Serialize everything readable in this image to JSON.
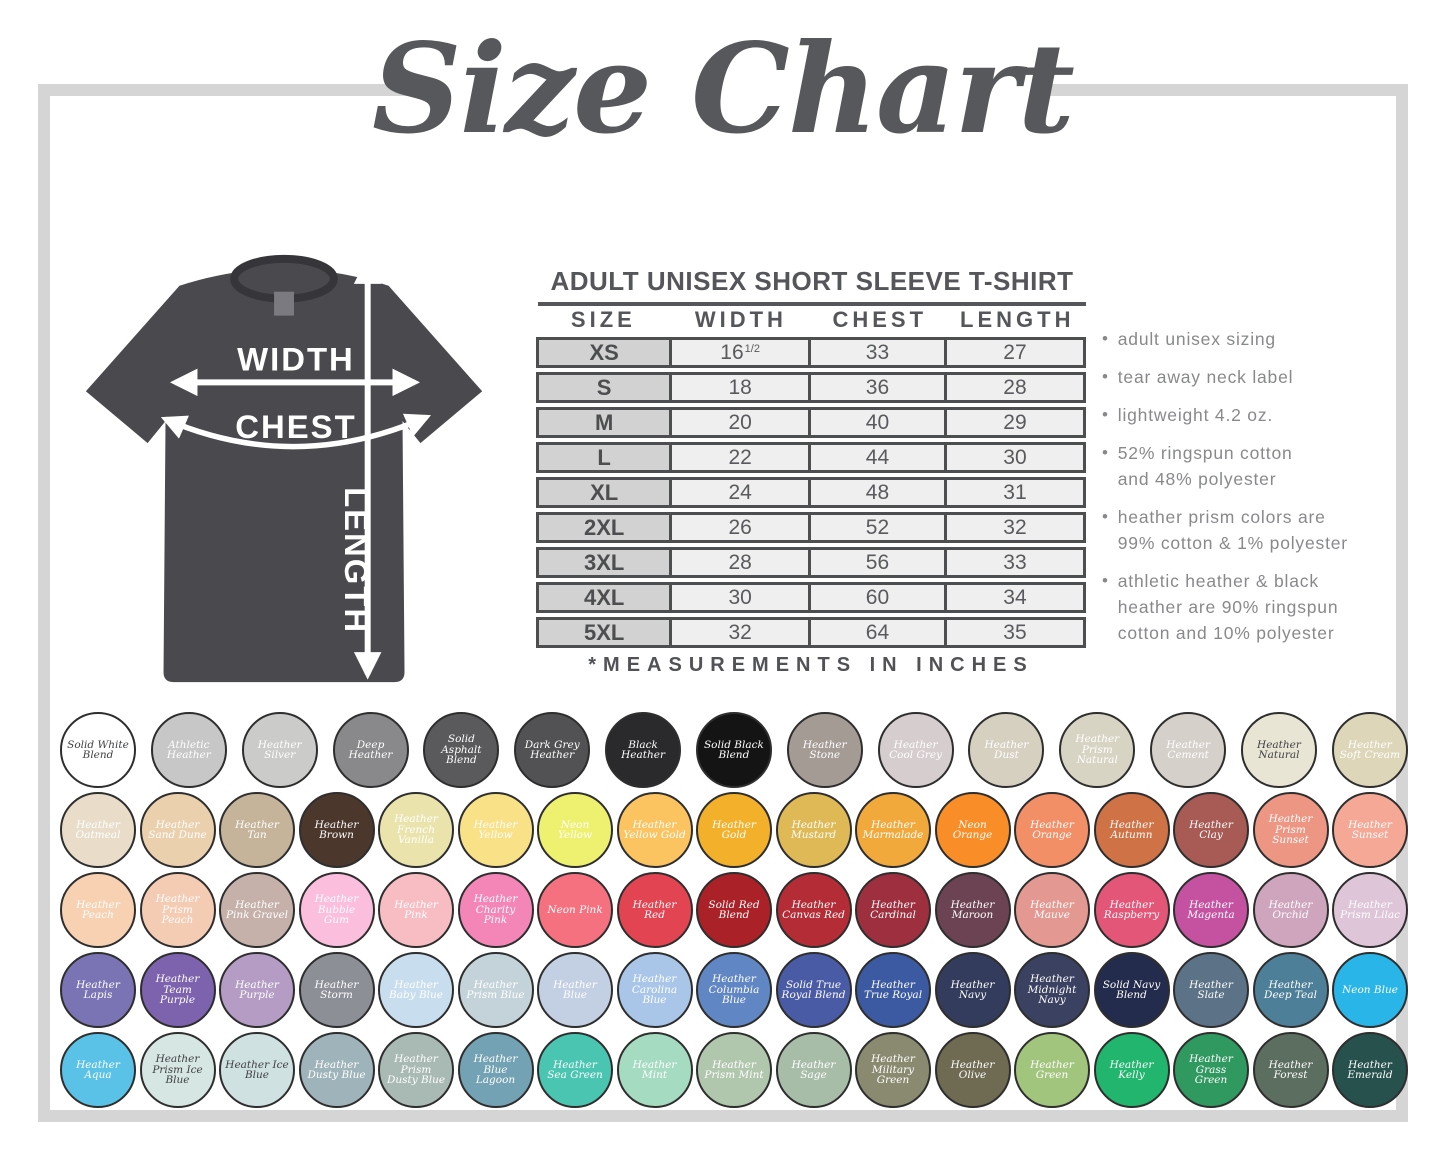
{
  "page": {
    "title": "Size Chart"
  },
  "diagram": {
    "width_label": "WIDTH",
    "chest_label": "CHEST",
    "length_label": "LENGTH",
    "shirt_color": "#4a494e"
  },
  "product": {
    "heading": "ADULT UNISEX SHORT SLEEVE T-SHIRT",
    "columns": [
      "SIZE",
      "WIDTH",
      "CHEST",
      "LENGTH"
    ],
    "rows": [
      {
        "size": "XS",
        "width": "16",
        "width_sup": "1/2",
        "chest": "33",
        "length": "27"
      },
      {
        "size": "S",
        "width": "18",
        "chest": "36",
        "length": "28"
      },
      {
        "size": "M",
        "width": "20",
        "chest": "40",
        "length": "29"
      },
      {
        "size": "L",
        "width": "22",
        "chest": "44",
        "length": "30"
      },
      {
        "size": "XL",
        "width": "24",
        "chest": "48",
        "length": "31"
      },
      {
        "size": "2XL",
        "width": "26",
        "chest": "52",
        "length": "32"
      },
      {
        "size": "3XL",
        "width": "28",
        "chest": "56",
        "length": "33"
      },
      {
        "size": "4XL",
        "width": "30",
        "chest": "60",
        "length": "34"
      },
      {
        "size": "5XL",
        "width": "32",
        "chest": "64",
        "length": "35"
      }
    ],
    "note": "*MEASUREMENTS IN INCHES"
  },
  "bullets": [
    [
      "adult unisex sizing"
    ],
    [
      "tear away neck label"
    ],
    [
      "lightweight 4.2 oz."
    ],
    [
      "52% ringspun cotton",
      "and 48% polyester"
    ],
    [
      "heather prism colors are",
      "99% cotton & 1% polyester"
    ],
    [
      "athletic heather & black",
      "heather are 90% ringspun",
      "cotton and 10% polyester"
    ]
  ],
  "swatch_rows": [
    [
      {
        "name": "Solid White Blend",
        "color": "#ffffff",
        "dark": true
      },
      {
        "name": "Athletic Heather",
        "color": "#c7c7c7"
      },
      {
        "name": "Heather Silver",
        "color": "#cbcbc9"
      },
      {
        "name": "Deep Heather",
        "color": "#89898b"
      },
      {
        "name": "Solid Asphalt Blend",
        "color": "#5a5a5c"
      },
      {
        "name": "Dark Grey Heather",
        "color": "#525254"
      },
      {
        "name": "Black Heather",
        "color": "#2a2a2c"
      },
      {
        "name": "Solid Black Blend",
        "color": "#141414"
      },
      {
        "name": "Heather Stone",
        "color": "#a49b95"
      },
      {
        "name": "Heather Cool Grey",
        "color": "#d5cdce"
      },
      {
        "name": "Heather Dust",
        "color": "#d6d0c1"
      },
      {
        "name": "Heather Prism Natural",
        "color": "#d7d4c3"
      },
      {
        "name": "Heather Cement",
        "color": "#d5d0c9"
      },
      {
        "name": "Heather Natural",
        "color": "#e9e5d5",
        "dark": true
      },
      {
        "name": "Heather Soft Cream",
        "color": "#ddd6b9"
      }
    ],
    [
      {
        "name": "Heather Oatmeal",
        "color": "#e9ddc9"
      },
      {
        "name": "Heather Sand Dune",
        "color": "#ebd0ae"
      },
      {
        "name": "Heather Tan",
        "color": "#c5b39a"
      },
      {
        "name": "Heather Brown",
        "color": "#4b372c"
      },
      {
        "name": "Heather French Vanilla",
        "color": "#eae4ac"
      },
      {
        "name": "Heather Yellow",
        "color": "#f9e188"
      },
      {
        "name": "Neon Yellow",
        "color": "#eef06f"
      },
      {
        "name": "Heather Yellow Gold",
        "color": "#fbc461"
      },
      {
        "name": "Heather Gold",
        "color": "#f3b12b"
      },
      {
        "name": "Heather Mustard",
        "color": "#deb955"
      },
      {
        "name": "Heather Marmalade",
        "color": "#f2a93c"
      },
      {
        "name": "Neon Orange",
        "color": "#f98e28"
      },
      {
        "name": "Heather Orange",
        "color": "#f38f67"
      },
      {
        "name": "Heather Autumn",
        "color": "#cf7245"
      },
      {
        "name": "Heather Clay",
        "color": "#a75b54"
      },
      {
        "name": "Heather Prism Sunset",
        "color": "#ed9683"
      },
      {
        "name": "Heather Sunset",
        "color": "#f5a896"
      }
    ],
    [
      {
        "name": "Heather Peach",
        "color": "#f7d1b1"
      },
      {
        "name": "Heather Prism Peach",
        "color": "#f4cbb3"
      },
      {
        "name": "Heather Pink Gravel",
        "color": "#c6b1aa"
      },
      {
        "name": "Heather Bubble Gum",
        "color": "#fbbedd"
      },
      {
        "name": "Heather Pink",
        "color": "#f8bdc3"
      },
      {
        "name": "Heather Charity Pink",
        "color": "#f485b7"
      },
      {
        "name": "Neon Pink",
        "color": "#f6717f"
      },
      {
        "name": "Heather Red",
        "color": "#e24451"
      },
      {
        "name": "Solid Red Blend",
        "color": "#aa2228"
      },
      {
        "name": "Heather Canvas Red",
        "color": "#b42c35"
      },
      {
        "name": "Heather Cardinal",
        "color": "#9e2f3e"
      },
      {
        "name": "Heather Maroon",
        "color": "#6c4352"
      },
      {
        "name": "Heather Mauve",
        "color": "#e39991"
      },
      {
        "name": "Heather Raspberry",
        "color": "#e35678"
      },
      {
        "name": "Heather Magenta",
        "color": "#c552a1"
      },
      {
        "name": "Heather Orchid",
        "color": "#cea5bc"
      },
      {
        "name": "Heather Prism Lilac",
        "color": "#dec5d8"
      }
    ],
    [
      {
        "name": "Heather Lapis",
        "color": "#7a74b5"
      },
      {
        "name": "Heather Team Purple",
        "color": "#7d62ae"
      },
      {
        "name": "Heather Purple",
        "color": "#b49cc4"
      },
      {
        "name": "Heather Storm",
        "color": "#8c8f96"
      },
      {
        "name": "Heather Baby Blue",
        "color": "#c8deee"
      },
      {
        "name": "Heather Prism Blue",
        "color": "#c3d3d9"
      },
      {
        "name": "Heather Blue",
        "color": "#c3cfe3"
      },
      {
        "name": "Heather Carolina Blue",
        "color": "#a9c6e9"
      },
      {
        "name": "Heather Columbia Blue",
        "color": "#6186c4"
      },
      {
        "name": "Solid True Royal Blend",
        "color": "#4a5ba5"
      },
      {
        "name": "Heather True Royal",
        "color": "#3c5aa1"
      },
      {
        "name": "Heather Navy",
        "color": "#333c5c"
      },
      {
        "name": "Heather Midnight Navy",
        "color": "#3a4161"
      },
      {
        "name": "Solid Navy Blend",
        "color": "#232c4c"
      },
      {
        "name": "Heather Slate",
        "color": "#5c7286"
      },
      {
        "name": "Heather Deep Teal",
        "color": "#4e7f99"
      },
      {
        "name": "Neon Blue",
        "color": "#29b5e8"
      }
    ],
    [
      {
        "name": "Heather Aqua",
        "color": "#5bc2e7"
      },
      {
        "name": "Heather Prism Ice Blue",
        "color": "#d6e6e3",
        "dark": true
      },
      {
        "name": "Heather Ice Blue",
        "color": "#d0e1e1",
        "dark": true
      },
      {
        "name": "Heather Dusty Blue",
        "color": "#9fb4ba"
      },
      {
        "name": "Heather Prism Dusty Blue",
        "color": "#a8bab3"
      },
      {
        "name": "Heather Blue Lagoon",
        "color": "#72a2b3"
      },
      {
        "name": "Heather Sea Green",
        "color": "#49c5b1"
      },
      {
        "name": "Heather Mint",
        "color": "#a5dbc1"
      },
      {
        "name": "Heather Prism Mint",
        "color": "#b0c7ad"
      },
      {
        "name": "Heather Sage",
        "color": "#a8bda8"
      },
      {
        "name": "Heather Military Green",
        "color": "#8a8a70"
      },
      {
        "name": "Heather Olive",
        "color": "#6e6b52"
      },
      {
        "name": "Heather Green",
        "color": "#a2c57d"
      },
      {
        "name": "Heather Kelly",
        "color": "#21b56d"
      },
      {
        "name": "Heather Grass Green",
        "color": "#2f9960"
      },
      {
        "name": "Heather Forest",
        "color": "#5b6e5f"
      },
      {
        "name": "Heather Emerald",
        "color": "#27514c"
      }
    ]
  ]
}
